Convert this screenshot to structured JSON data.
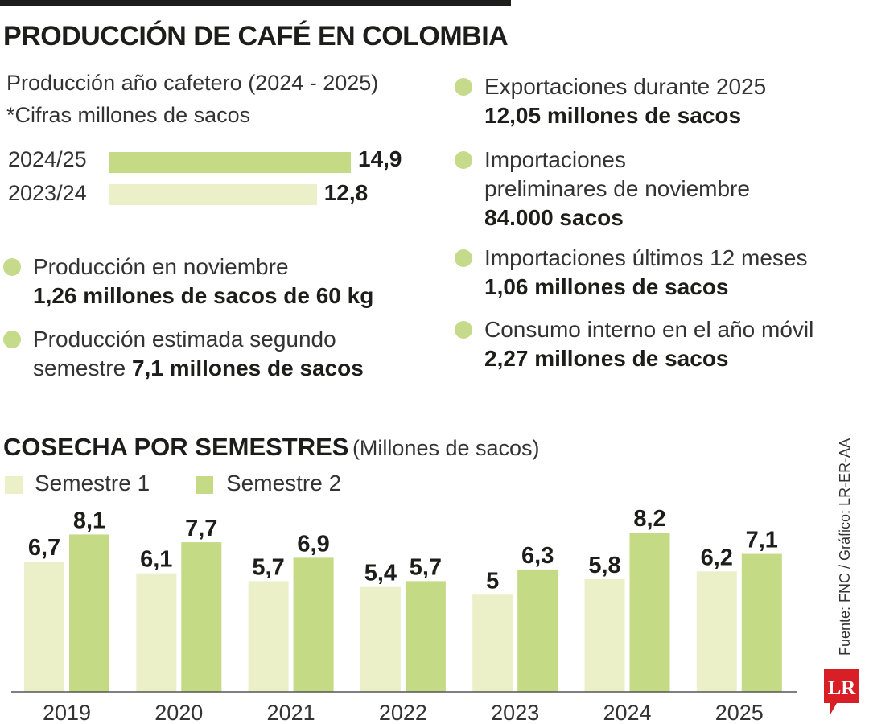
{
  "title": "PRODUCCIÓN DE CAFÉ EN COLOMBIA",
  "colors": {
    "semestre1": "#ebf0c9",
    "semestre2": "#c4da85",
    "accent": "#c5da8a",
    "text": "#1d1d1b",
    "logo": "#d81f26"
  },
  "annual": {
    "subtitle": "Producción año cafetero (2024 - 2025)",
    "note": "*Cifras millones de sacos",
    "bars": [
      {
        "label": "2024/25",
        "value": 14.9,
        "display": "14,9"
      },
      {
        "label": "2023/24",
        "value": 12.8,
        "display": "12,8"
      }
    ]
  },
  "facts_left": [
    {
      "lines": [
        {
          "plain": "Producción en noviembre",
          "bold": ""
        },
        {
          "plain": "",
          "bold": "1,26 millones de sacos de 60 kg"
        }
      ]
    },
    {
      "lines": [
        {
          "plain": "Producción estimada segundo",
          "bold": ""
        },
        {
          "plain": "semestre ",
          "bold": "7,1 millones de sacos"
        }
      ]
    }
  ],
  "facts_right": [
    {
      "lines": [
        {
          "plain": "Exportaciones durante 2025",
          "bold": ""
        },
        {
          "plain": "",
          "bold": "12,05 millones de sacos"
        }
      ]
    },
    {
      "lines": [
        {
          "plain": "Importaciones",
          "bold": ""
        },
        {
          "plain": "preliminares de noviembre",
          "bold": ""
        },
        {
          "plain": "",
          "bold": "84.000 sacos"
        }
      ]
    },
    {
      "lines": [
        {
          "plain": "Importaciones últimos 12 meses",
          "bold": ""
        },
        {
          "plain": "",
          "bold": "1,06 millones de sacos"
        }
      ]
    },
    {
      "lines": [
        {
          "plain": "Consumo interno en el año móvil",
          "bold": ""
        },
        {
          "plain": "",
          "bold": "2,27 millones de sacos"
        }
      ]
    }
  ],
  "chart_data": {
    "type": "bar",
    "title": "COSECHA POR SEMESTRES",
    "subtitle": "(Millones de sacos)",
    "categories": [
      "2019",
      "2020",
      "2021",
      "2022",
      "2023",
      "2024",
      "2025"
    ],
    "series": [
      {
        "name": "Semestre 1",
        "values": [
          6.7,
          6.1,
          5.7,
          5.4,
          5,
          5.8,
          6.2
        ],
        "labels": [
          "6,7",
          "6,1",
          "5,7",
          "5,4",
          "5",
          "5,8",
          "6,2"
        ]
      },
      {
        "name": "Semestre 2",
        "values": [
          8.1,
          7.7,
          6.9,
          5.7,
          6.3,
          8.2,
          7.1
        ],
        "labels": [
          "8,1",
          "7,7",
          "6,9",
          "5,7",
          "6,3",
          "8,2",
          "7,1"
        ]
      }
    ],
    "ylim": [
      0,
      8.2
    ],
    "grid": false,
    "legend": "top-left"
  },
  "source": "Fuente: FNC / Gráfico: LR-ER-AA",
  "logo_text": "LR"
}
